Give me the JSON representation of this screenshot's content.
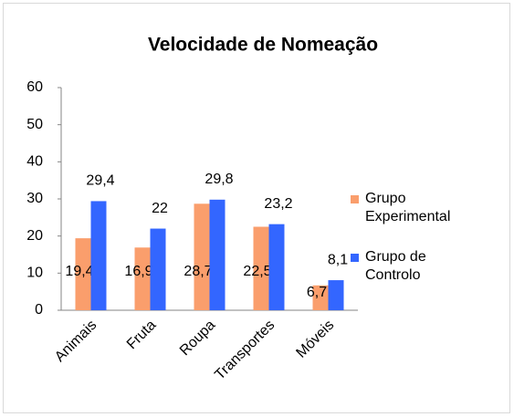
{
  "chart_data": {
    "type": "bar",
    "title": "Velocidade de Nomeação",
    "categories": [
      "Animais",
      "Fruta",
      "Roupa",
      "Transportes",
      "Móveis"
    ],
    "series": [
      {
        "name": "Grupo Experimental",
        "color": "#fa9e6c",
        "values": [
          19.4,
          16.9,
          28.7,
          22.5,
          6.7
        ],
        "value_labels": [
          "19,4",
          "16,9",
          "28,7",
          "22,5",
          "6,7"
        ]
      },
      {
        "name": "Grupo de Controlo",
        "color": "#3366ff",
        "values": [
          29.4,
          22,
          29.8,
          23.2,
          8.1
        ],
        "value_labels": [
          "29,4",
          "22",
          "29,8",
          "23,2",
          "8,1"
        ]
      }
    ],
    "ylim": [
      0,
      60
    ],
    "yticks": [
      0,
      10,
      20,
      30,
      40,
      50,
      60
    ],
    "legend": "right"
  }
}
